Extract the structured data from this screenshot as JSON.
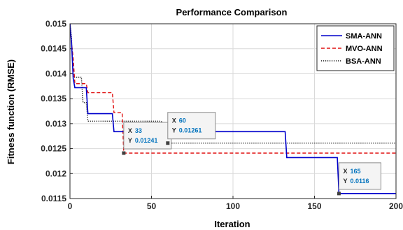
{
  "chart_data": {
    "type": "line",
    "title": "Performance Comparison",
    "xlabel": "Iteration",
    "ylabel": "Fitness function (RMSE)",
    "xlim": [
      0,
      200
    ],
    "ylim": [
      0.0115,
      0.015
    ],
    "xticks": [
      "0",
      "50",
      "100",
      "150",
      "200"
    ],
    "yticks": [
      "0.0115",
      "0.012",
      "0.0125",
      "0.013",
      "0.0135",
      "0.014",
      "0.0145",
      "0.015"
    ],
    "grid": true,
    "legend_position": "top-right",
    "series": [
      {
        "name": "SMA-ANN",
        "color": "#0000cc",
        "style": "solid",
        "points": [
          [
            0,
            0.015
          ],
          [
            1,
            0.0146
          ],
          [
            2,
            0.0139
          ],
          [
            3,
            0.01372
          ],
          [
            10,
            0.01372
          ],
          [
            11,
            0.0132
          ],
          [
            26,
            0.0132
          ],
          [
            27,
            0.01284
          ],
          [
            132,
            0.01284
          ],
          [
            133,
            0.01232
          ],
          [
            164,
            0.01232
          ],
          [
            165,
            0.0116
          ],
          [
            200,
            0.0116
          ]
        ]
      },
      {
        "name": "MVO-ANN",
        "color": "#e01010",
        "style": "dashed",
        "points": [
          [
            0,
            0.015
          ],
          [
            1,
            0.0146
          ],
          [
            2,
            0.0143
          ],
          [
            3,
            0.0138
          ],
          [
            10,
            0.0138
          ],
          [
            11,
            0.01362
          ],
          [
            26,
            0.01362
          ],
          [
            27,
            0.01322
          ],
          [
            32,
            0.01322
          ],
          [
            33,
            0.01241
          ],
          [
            200,
            0.01241
          ]
        ]
      },
      {
        "name": "BSA-ANN",
        "color": "#111111",
        "style": "dotted",
        "points": [
          [
            0,
            0.015
          ],
          [
            1,
            0.0147
          ],
          [
            2,
            0.01393
          ],
          [
            7,
            0.01393
          ],
          [
            8,
            0.01342
          ],
          [
            10,
            0.01342
          ],
          [
            11,
            0.01305
          ],
          [
            56,
            0.01305
          ],
          [
            57,
            0.01298
          ],
          [
            59,
            0.01298
          ],
          [
            60,
            0.01261
          ],
          [
            200,
            0.01261
          ]
        ]
      }
    ],
    "datatips": [
      {
        "series": "MVO-ANN",
        "x": 33,
        "y": 0.01241,
        "x_label": "X",
        "y_label": "Y",
        "x_text": "33",
        "y_text": "0.01241"
      },
      {
        "series": "BSA-ANN",
        "x": 60,
        "y": 0.01261,
        "x_label": "X",
        "y_label": "Y",
        "x_text": "60",
        "y_text": "0.01261"
      },
      {
        "series": "SMA-ANN",
        "x": 165,
        "y": 0.0116,
        "x_label": "X",
        "y_label": "Y",
        "x_text": "165",
        "y_text": "0.0116"
      }
    ]
  }
}
